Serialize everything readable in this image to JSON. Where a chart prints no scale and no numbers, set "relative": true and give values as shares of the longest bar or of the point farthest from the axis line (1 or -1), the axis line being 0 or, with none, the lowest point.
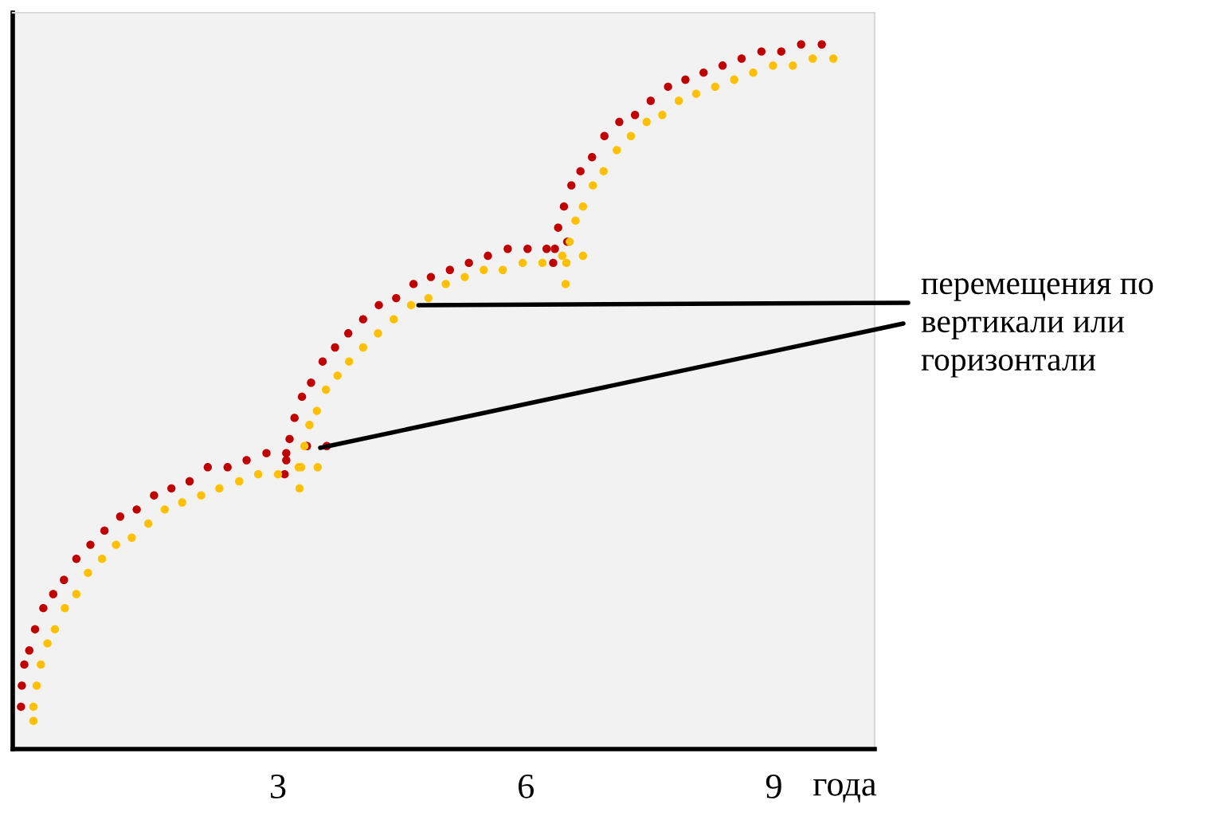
{
  "chart_data": {
    "type": "scatter",
    "relative": true,
    "marker": "circle",
    "xlabel": "года",
    "xlim": [
      -0.21,
      10.22
    ],
    "xticks": [
      3,
      6,
      9
    ],
    "tick_labels": "x",
    "grid": false,
    "legend": false,
    "series": [
      {
        "color": "#c00000",
        "x": [
          -0.11,
          -0.1,
          -0.07,
          -0.01,
          0.06,
          0.16,
          0.28,
          0.41,
          0.56,
          0.73,
          0.9,
          1.09,
          1.29,
          1.5,
          1.71,
          1.93,
          2.15,
          2.39,
          2.62,
          2.86,
          3.1,
          3.1,
          3.08,
          3.35,
          3.59,
          3.14,
          3.2,
          3.29,
          3.4,
          3.54,
          3.69,
          3.85,
          4.03,
          4.22,
          4.43,
          4.64,
          4.85,
          5.08,
          5.31,
          5.54,
          5.78,
          6.02,
          6.25,
          6.35,
          6.33,
          6.5,
          6.39,
          6.46,
          6.55,
          6.66,
          6.8,
          6.95,
          7.13,
          7.32,
          7.51,
          7.72,
          7.93,
          8.15,
          8.38,
          8.61,
          8.85,
          9.09,
          9.33,
          9.58
        ],
        "values": [
          0.06,
          0.09,
          0.12,
          0.14,
          0.17,
          0.2,
          0.22,
          0.24,
          0.27,
          0.29,
          0.31,
          0.33,
          0.34,
          0.36,
          0.37,
          0.38,
          0.4,
          0.4,
          0.41,
          0.42,
          0.42,
          0.41,
          0.39,
          0.43,
          0.43,
          0.44,
          0.47,
          0.5,
          0.52,
          0.55,
          0.57,
          0.59,
          0.61,
          0.63,
          0.64,
          0.66,
          0.67,
          0.68,
          0.69,
          0.7,
          0.71,
          0.71,
          0.71,
          0.71,
          0.69,
          0.72,
          0.74,
          0.77,
          0.8,
          0.82,
          0.84,
          0.87,
          0.89,
          0.9,
          0.92,
          0.94,
          0.95,
          0.96,
          0.97,
          0.98,
          0.99,
          0.99,
          1.0,
          1.0
        ]
      },
      {
        "color": "#ffc000",
        "x": [
          0.04,
          0.04,
          0.08,
          0.13,
          0.21,
          0.3,
          0.42,
          0.56,
          0.7,
          0.87,
          1.04,
          1.23,
          1.43,
          1.63,
          1.84,
          2.07,
          2.29,
          2.53,
          2.76,
          3.0,
          3.25,
          3.28,
          3.26,
          3.48,
          3.32,
          3.38,
          3.47,
          3.58,
          3.72,
          3.86,
          4.03,
          4.21,
          4.4,
          4.61,
          4.82,
          5.03,
          5.26,
          5.49,
          5.72,
          5.96,
          6.2,
          6.44,
          6.49,
          6.48,
          6.69,
          6.53,
          6.6,
          6.69,
          6.81,
          6.94,
          7.1,
          7.27,
          7.46,
          7.65,
          7.85,
          8.06,
          8.29,
          8.52,
          8.75,
          8.99,
          9.23,
          9.47,
          9.72
        ],
        "values": [
          0.04,
          0.06,
          0.09,
          0.12,
          0.15,
          0.17,
          0.2,
          0.22,
          0.25,
          0.27,
          0.29,
          0.3,
          0.32,
          0.34,
          0.35,
          0.36,
          0.37,
          0.38,
          0.39,
          0.39,
          0.4,
          0.4,
          0.37,
          0.4,
          0.43,
          0.46,
          0.48,
          0.51,
          0.53,
          0.55,
          0.57,
          0.59,
          0.61,
          0.63,
          0.64,
          0.66,
          0.67,
          0.68,
          0.68,
          0.69,
          0.69,
          0.7,
          0.69,
          0.66,
          0.7,
          0.72,
          0.75,
          0.77,
          0.8,
          0.82,
          0.85,
          0.87,
          0.89,
          0.9,
          0.92,
          0.93,
          0.94,
          0.95,
          0.96,
          0.97,
          0.97,
          0.98,
          0.98
        ]
      }
    ],
    "annotations": [
      {
        "text": "перемещения по\nвертикали или\nгоризонтали",
        "x": 4.7,
        "y": 0.63
      }
    ]
  }
}
